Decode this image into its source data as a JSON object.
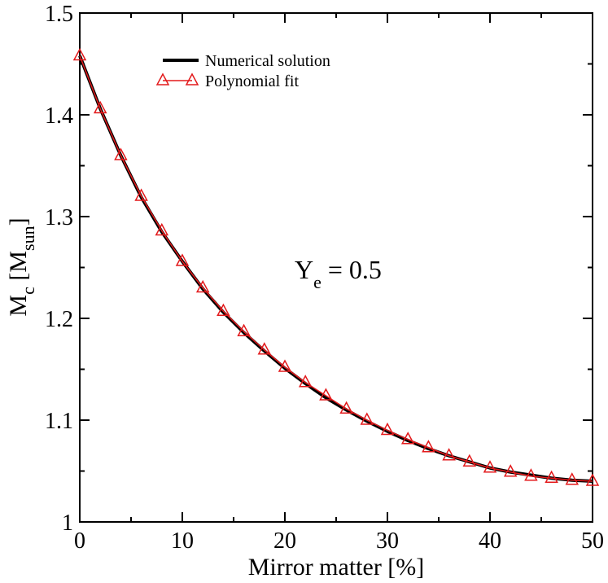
{
  "chart_data": {
    "type": "line",
    "xlabel": "Mirror matter [%]",
    "ylabel": {
      "main": "M",
      "sub": "c",
      "bracket_open": " [M",
      "unit_sub": "sun",
      "bracket_close": "]"
    },
    "xlim": [
      0,
      50
    ],
    "ylim": [
      1.0,
      1.5
    ],
    "x_ticks": [
      0,
      10,
      20,
      30,
      40,
      50
    ],
    "y_ticks": [
      1.0,
      1.1,
      1.2,
      1.3,
      1.4,
      1.5
    ],
    "x_tick_labels": [
      "0",
      "10",
      "20",
      "30",
      "40",
      "50"
    ],
    "y_tick_labels": [
      "1",
      "1.1",
      "1.2",
      "1.3",
      "1.4",
      "1.5"
    ],
    "legend_position": "top-left",
    "annotation": {
      "main": "Y",
      "sub": "e",
      "rest": " = 0.5"
    },
    "series": [
      {
        "name": "Numerical solution",
        "color": "#000000",
        "style": "solid-line",
        "x": [
          0,
          2,
          4,
          6,
          8,
          10,
          12,
          14,
          16,
          18,
          20,
          22,
          24,
          26,
          28,
          30,
          32,
          34,
          36,
          38,
          40,
          42,
          44,
          46,
          48,
          50
        ],
        "y": [
          1.458,
          1.406,
          1.36,
          1.319,
          1.285,
          1.256,
          1.229,
          1.206,
          1.186,
          1.168,
          1.151,
          1.136,
          1.122,
          1.11,
          1.099,
          1.089,
          1.08,
          1.072,
          1.065,
          1.059,
          1.053,
          1.049,
          1.046,
          1.043,
          1.041,
          1.04
        ]
      },
      {
        "name": "Polynomial fit",
        "color": "#e31a1c",
        "style": "line-with-triangles",
        "x": [
          0,
          2,
          4,
          6,
          8,
          10,
          12,
          14,
          16,
          18,
          20,
          22,
          24,
          26,
          28,
          30,
          32,
          34,
          36,
          38,
          40,
          42,
          44,
          46,
          48,
          50
        ],
        "y": [
          1.458,
          1.406,
          1.36,
          1.32,
          1.286,
          1.256,
          1.23,
          1.207,
          1.187,
          1.169,
          1.152,
          1.137,
          1.124,
          1.111,
          1.1,
          1.09,
          1.081,
          1.073,
          1.065,
          1.059,
          1.053,
          1.049,
          1.045,
          1.043,
          1.041,
          1.04
        ]
      }
    ]
  }
}
